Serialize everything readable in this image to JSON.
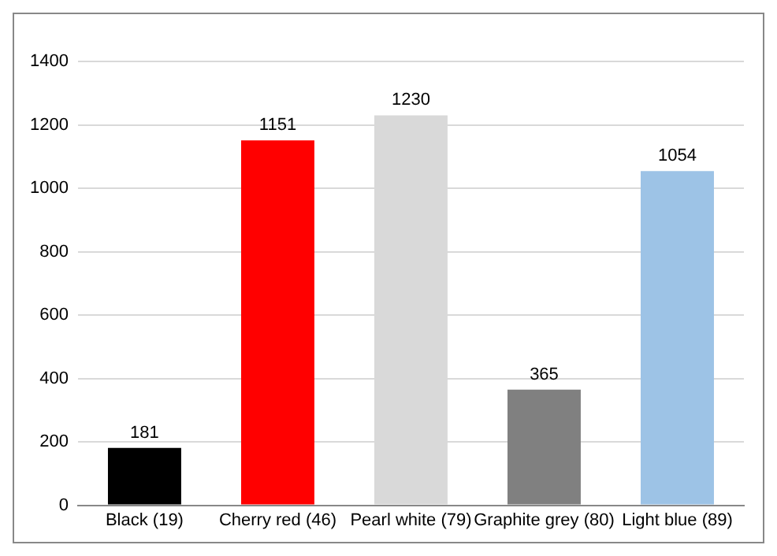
{
  "chart_data": {
    "type": "bar",
    "categories": [
      "Black (19)",
      "Cherry red (46)",
      "Pearl white (79)",
      "Graphite grey (80)",
      "Light blue (89)"
    ],
    "values": [
      181,
      1151,
      1230,
      365,
      1054
    ],
    "colors": [
      "#000000",
      "#ff0000",
      "#d9d9d9",
      "#808080",
      "#9dc3e6"
    ],
    "ylim": [
      0,
      1400
    ],
    "yticks": [
      0,
      200,
      400,
      600,
      800,
      1000,
      1200,
      1400
    ],
    "grid": "y",
    "data_labels": true,
    "legend": false
  }
}
